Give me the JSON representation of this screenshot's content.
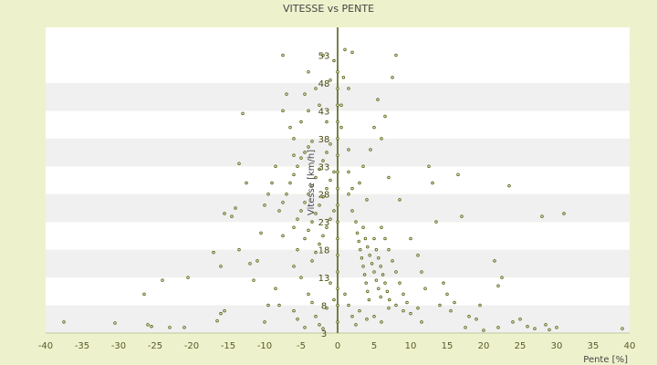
{
  "chart_data": {
    "type": "scatter",
    "title": "VITESSE vs PENTE",
    "xlabel": "Pente [%]",
    "ylabel": "Vitesse [km/h]",
    "xlim": [
      -40,
      40
    ],
    "ylim": [
      3,
      58
    ],
    "x_ticks": [
      -40,
      -35,
      -30,
      -25,
      -20,
      -15,
      -10,
      -5,
      0,
      5,
      10,
      15,
      20,
      25,
      30,
      35,
      40
    ],
    "y_ticks": [
      3,
      8,
      13,
      18,
      23,
      28,
      33,
      38,
      43,
      48,
      53
    ],
    "grid": true,
    "legend": "none",
    "colors": {
      "background": "#eef2cc",
      "band_light": "#ffffff",
      "band_dark": "#f0f0f0",
      "point": "#5a6614",
      "axis": "#4a5a0a"
    },
    "series": [
      {
        "values": [
          [
            -37.5,
            5.0
          ],
          [
            -30.5,
            4.8
          ],
          [
            -26,
            4.5
          ],
          [
            -25.5,
            4.2
          ],
          [
            -23,
            4.0
          ],
          [
            -21,
            4.0
          ],
          [
            -26.5,
            10.0
          ],
          [
            -24,
            12.5
          ],
          [
            -20.5,
            13.0
          ],
          [
            -16.5,
            5.2
          ],
          [
            -16,
            6.5
          ],
          [
            -15.5,
            7.0
          ],
          [
            -17,
            17.5
          ],
          [
            -16,
            15.0
          ],
          [
            -15.5,
            24.5
          ],
          [
            -14.5,
            24.0
          ],
          [
            -14,
            25.5
          ],
          [
            -13.5,
            18.0
          ],
          [
            -13.5,
            33.5
          ],
          [
            -13,
            42.5
          ],
          [
            -12.5,
            30.0
          ],
          [
            -12,
            15.5
          ],
          [
            -11.5,
            12.5
          ],
          [
            -11,
            16.0
          ],
          [
            -10.5,
            21.0
          ],
          [
            -10,
            26.0
          ],
          [
            -9.5,
            28.0
          ],
          [
            -9,
            30.0
          ],
          [
            -8.5,
            33.0
          ],
          [
            -8,
            8.0
          ],
          [
            -7.5,
            20.5
          ],
          [
            -7.5,
            43.0
          ],
          [
            -7,
            46.0
          ],
          [
            -7.5,
            53.0
          ],
          [
            -6.5,
            40.0
          ],
          [
            -6,
            38.0
          ],
          [
            -9.5,
            8.0
          ],
          [
            -10,
            5.0
          ],
          [
            -8.5,
            11.0
          ],
          [
            -6,
            7.0
          ],
          [
            -5.5,
            5.5
          ],
          [
            -4.5,
            4.0
          ],
          [
            -6,
            15.0
          ],
          [
            -5.5,
            18.0
          ],
          [
            -5,
            13.0
          ],
          [
            -4,
            10.0
          ],
          [
            -3.5,
            8.5
          ],
          [
            -3,
            6.0
          ],
          [
            -2.5,
            4.5
          ],
          [
            -2,
            3.8
          ],
          [
            -1.5,
            7.5
          ],
          [
            -1,
            12.0
          ],
          [
            -0.5,
            9.0
          ],
          [
            -8,
            25.0
          ],
          [
            -7.5,
            26.5
          ],
          [
            -7,
            28.0
          ],
          [
            -6.5,
            30.0
          ],
          [
            -6,
            31.5
          ],
          [
            -5.5,
            33.0
          ],
          [
            -5,
            34.5
          ],
          [
            -4.5,
            35.5
          ],
          [
            -4,
            36.5
          ],
          [
            -3.5,
            37.5
          ],
          [
            -6,
            22.0
          ],
          [
            -5.5,
            23.5
          ],
          [
            -5,
            25.0
          ],
          [
            -4.5,
            26.5
          ],
          [
            -4,
            28.0
          ],
          [
            -3.5,
            29.5
          ],
          [
            -3,
            31.0
          ],
          [
            -2.5,
            32.5
          ],
          [
            -2,
            34.0
          ],
          [
            -1.5,
            35.5
          ],
          [
            -1,
            37.0
          ],
          [
            -4.5,
            20.0
          ],
          [
            -4,
            21.5
          ],
          [
            -3.5,
            23.0
          ],
          [
            -3,
            24.5
          ],
          [
            -2.5,
            26.0
          ],
          [
            -2,
            27.5
          ],
          [
            -1.5,
            29.0
          ],
          [
            -1,
            30.5
          ],
          [
            -0.5,
            32.0
          ],
          [
            -3.5,
            16.0
          ],
          [
            -3,
            17.5
          ],
          [
            -2.5,
            19.0
          ],
          [
            -2,
            20.5
          ],
          [
            -1.5,
            22.0
          ],
          [
            -1,
            23.5
          ],
          [
            -0.5,
            25.0
          ],
          [
            -4,
            43.0
          ],
          [
            -4.5,
            46.0
          ],
          [
            -4,
            50.0
          ],
          [
            -3,
            47.0
          ],
          [
            -2.5,
            44.0
          ],
          [
            -1.5,
            41.0
          ],
          [
            -1,
            48.5
          ],
          [
            -0.5,
            52.0
          ],
          [
            -2,
            53.0
          ],
          [
            -5,
            41.0
          ],
          [
            -6,
            35.0
          ],
          [
            0,
            5.0
          ],
          [
            0,
            8.0
          ],
          [
            0,
            11.0
          ],
          [
            0,
            14.0
          ],
          [
            0,
            17.0
          ],
          [
            0,
            20.0
          ],
          [
            0,
            23.0
          ],
          [
            0,
            26.0
          ],
          [
            0,
            29.0
          ],
          [
            0,
            32.0
          ],
          [
            0,
            35.0
          ],
          [
            0,
            38.0
          ],
          [
            0,
            41.0
          ],
          [
            0,
            44.0
          ],
          [
            0,
            47.0
          ],
          [
            0,
            50.0
          ],
          [
            0.5,
            40.0
          ],
          [
            0.5,
            44.0
          ],
          [
            0.8,
            49.0
          ],
          [
            1.0,
            54.0
          ],
          [
            1.5,
            47.0
          ],
          [
            2,
            53.5
          ],
          [
            1.5,
            28.0
          ],
          [
            1.5,
            32.0
          ],
          [
            1.5,
            36.0
          ],
          [
            2,
            25.0
          ],
          [
            2,
            29.0
          ],
          [
            1,
            10.0
          ],
          [
            1.5,
            8.0
          ],
          [
            2,
            6.0
          ],
          [
            2.5,
            4.5
          ],
          [
            2.5,
            23.0
          ],
          [
            2.7,
            21.0
          ],
          [
            2.9,
            19.5
          ],
          [
            3.1,
            18.0
          ],
          [
            3.3,
            16.5
          ],
          [
            3.5,
            15.0
          ],
          [
            3.7,
            13.5
          ],
          [
            3.9,
            12.0
          ],
          [
            4.1,
            10.5
          ],
          [
            4.3,
            9.0
          ],
          [
            3.5,
            22.0
          ],
          [
            3.8,
            20.0
          ],
          [
            4.1,
            18.5
          ],
          [
            4.4,
            17.0
          ],
          [
            4.7,
            15.5
          ],
          [
            5.0,
            14.0
          ],
          [
            5.3,
            12.5
          ],
          [
            5.6,
            11.0
          ],
          [
            5.9,
            9.5
          ],
          [
            5,
            20.0
          ],
          [
            5.3,
            18.0
          ],
          [
            5.6,
            16.5
          ],
          [
            5.9,
            15.0
          ],
          [
            6.2,
            13.5
          ],
          [
            6.5,
            12.0
          ],
          [
            6.8,
            10.5
          ],
          [
            7.1,
            9.0
          ],
          [
            6,
            22.0
          ],
          [
            6.5,
            20.0
          ],
          [
            7,
            18.0
          ],
          [
            7.5,
            16.0
          ],
          [
            8,
            14.0
          ],
          [
            8.5,
            12.0
          ],
          [
            9,
            10.0
          ],
          [
            9.5,
            8.5
          ],
          [
            3,
            30.0
          ],
          [
            3.5,
            33.0
          ],
          [
            4,
            27.0
          ],
          [
            4.5,
            36.0
          ],
          [
            5,
            40.0
          ],
          [
            5.5,
            45.0
          ],
          [
            6,
            38.0
          ],
          [
            6.5,
            42.0
          ],
          [
            7,
            31.0
          ],
          [
            7.5,
            49.0
          ],
          [
            8,
            53.0
          ],
          [
            8.5,
            27.0
          ],
          [
            3,
            7.0
          ],
          [
            4,
            5.5
          ],
          [
            5,
            6.0
          ],
          [
            6,
            5.0
          ],
          [
            7,
            7.5
          ],
          [
            8,
            8.0
          ],
          [
            9,
            7.0
          ],
          [
            10,
            6.5
          ],
          [
            11,
            7.5
          ],
          [
            11.5,
            5.0
          ],
          [
            10,
            20.0
          ],
          [
            11,
            17.0
          ],
          [
            11.5,
            14.0
          ],
          [
            12,
            11.0
          ],
          [
            12.5,
            33.0
          ],
          [
            13,
            30.0
          ],
          [
            13.5,
            23.0
          ],
          [
            14,
            8.0
          ],
          [
            14.5,
            12.0
          ],
          [
            15,
            10.0
          ],
          [
            15.5,
            7.0
          ],
          [
            16,
            8.5
          ],
          [
            16.5,
            31.5
          ],
          [
            17,
            24.0
          ],
          [
            17.5,
            4.0
          ],
          [
            18,
            6.0
          ],
          [
            19,
            5.5
          ],
          [
            19.5,
            8.0
          ],
          [
            20,
            3.5
          ],
          [
            22,
            4.0
          ],
          [
            21.5,
            16.0
          ],
          [
            22.5,
            13.0
          ],
          [
            22,
            11.5
          ],
          [
            23.5,
            29.5
          ],
          [
            24,
            5.0
          ],
          [
            25,
            5.5
          ],
          [
            26,
            4.2
          ],
          [
            27,
            3.8
          ],
          [
            28,
            24.0
          ],
          [
            28.5,
            4.5
          ],
          [
            29,
            3.6
          ],
          [
            30,
            4.0
          ],
          [
            31,
            24.5
          ],
          [
            39,
            3.8
          ]
        ]
      }
    ]
  }
}
